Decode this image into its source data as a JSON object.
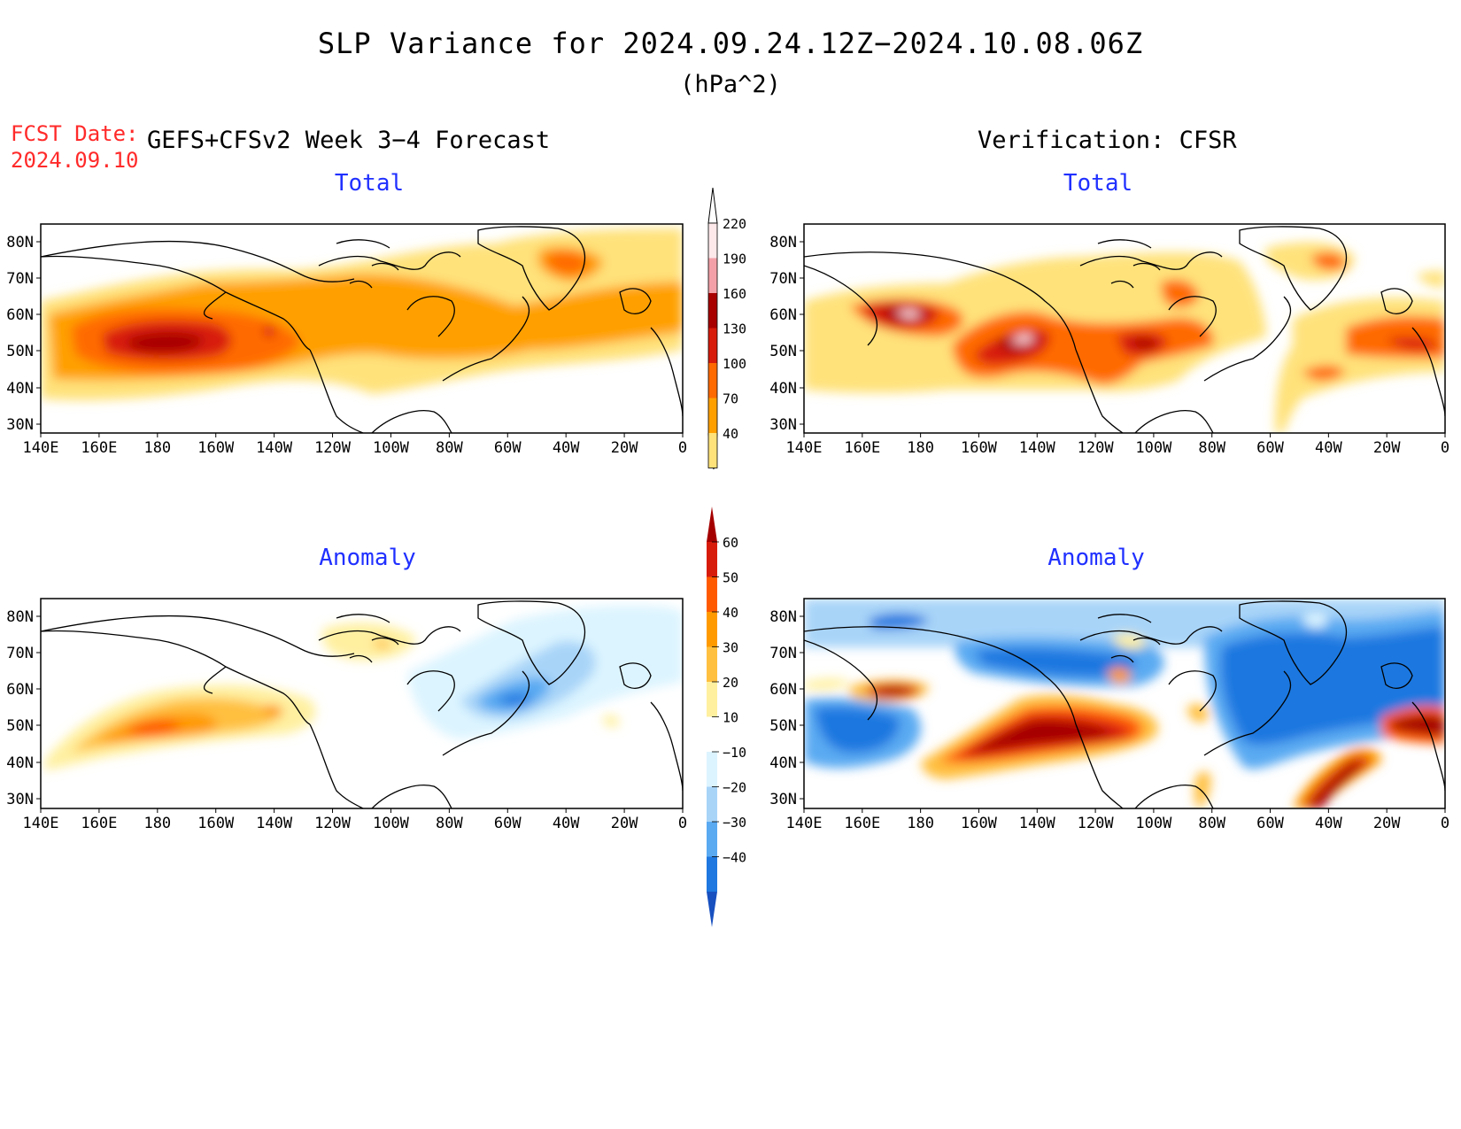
{
  "title": "SLP Variance for 2024.09.24.12Z−2024.10.08.06Z",
  "units": "(hPa^2)",
  "fcst_label": "FCST Date:",
  "fcst_date": "2024.09.10",
  "left_heading": "GEFS+CFSv2 Week 3−4 Forecast",
  "right_heading": "Verification: CFSR",
  "panels": {
    "fcst_total_title": "Total",
    "verif_total_title": "Total",
    "fcst_anom_title": "Anomaly",
    "verif_anom_title": "Anomaly"
  },
  "lon_labels": [
    "140E",
    "160E",
    "180",
    "160W",
    "140W",
    "120W",
    "100W",
    "80W",
    "60W",
    "40W",
    "20W",
    "0"
  ],
  "lat_labels": [
    "80N",
    "70N",
    "60N",
    "50N",
    "40N",
    "30N"
  ],
  "total_colorbar": {
    "levels": [
      "220",
      "190",
      "160",
      "130",
      "100",
      "70",
      "40"
    ],
    "colors": [
      "#fde8ea",
      "#f4a0a8",
      "#a80000",
      "#d81c0c",
      "#ff6a00",
      "#ffa000",
      "#ffe27a"
    ]
  },
  "anomaly_colorbar": {
    "levels": [
      "60",
      "50",
      "40",
      "30",
      "20",
      "10",
      "−10",
      "−20",
      "−30",
      "−40"
    ],
    "colors": [
      "#a50000",
      "#d81c0c",
      "#ff5a00",
      "#ff9a00",
      "#ffc040",
      "#fff0a0",
      "#ffffff",
      "#dcf4ff",
      "#a8d4f8",
      "#5aaaf2",
      "#1f78e0",
      "#1850c0"
    ]
  },
  "colors": {
    "title_blue": "#2030ff",
    "fcst_red": "#ff2a2a"
  }
}
